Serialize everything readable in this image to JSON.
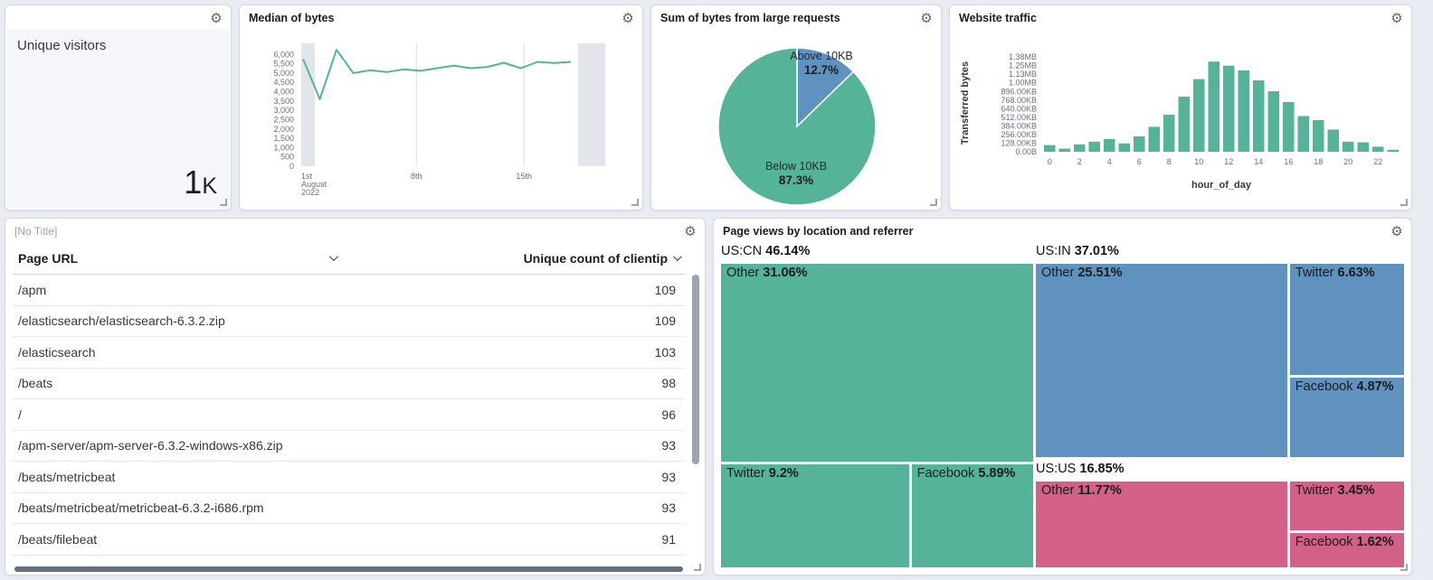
{
  "palette": {
    "green": "#54B399",
    "blue": "#6092C0",
    "pink": "#D36086",
    "band": "#E2E6EC"
  },
  "unique_visitors": {
    "label": "Unique visitors",
    "value": "1",
    "suffix": "K"
  },
  "median_of_bytes": {
    "title": "Median of bytes"
  },
  "large_requests": {
    "title": "Sum of bytes from large requests"
  },
  "website_traffic": {
    "title": "Website traffic"
  },
  "table_panel": {
    "title": "[No Title]",
    "col_page_url": "Page URL",
    "col_count": "Unique count of clientip"
  },
  "treemap_panel": {
    "title": "Page views by location and referrer"
  },
  "chart_data": [
    {
      "type": "line",
      "title": "Median of bytes",
      "color": "#54B399",
      "ylim": [
        0,
        6000
      ],
      "y_ticks": [
        "0",
        "500",
        "1,000",
        "1,500",
        "2,000",
        "2,500",
        "3,000",
        "3,500",
        "4,000",
        "4,500",
        "5,000",
        "5,500",
        "6,000"
      ],
      "x_ticks": [
        [
          "1st",
          "August",
          "2022"
        ],
        [
          "8th"
        ],
        [
          "15th"
        ]
      ],
      "values": [
        5750,
        3600,
        6250,
        5000,
        5150,
        5050,
        5200,
        5120,
        5260,
        5400,
        5260,
        5330,
        5550,
        5260,
        5600,
        5540,
        5600
      ]
    },
    {
      "type": "pie",
      "title": "Sum of bytes from large requests",
      "slices": [
        {
          "label": "Above 10KB",
          "value": 12.7,
          "pct_label": "12.7%",
          "color": "#6092C0"
        },
        {
          "label": "Below 10KB",
          "value": 87.3,
          "pct_label": "87.3%",
          "color": "#54B399"
        }
      ]
    },
    {
      "type": "bar",
      "title": "Website traffic",
      "xlabel": "hour_of_day",
      "ylabel": "Transferred bytes",
      "color": "#54B399",
      "categories": [
        0,
        1,
        2,
        3,
        4,
        5,
        6,
        7,
        8,
        9,
        10,
        11,
        12,
        13,
        14,
        15,
        16,
        17,
        18,
        19,
        20,
        21,
        22,
        23
      ],
      "values_kb": [
        100,
        45,
        110,
        150,
        190,
        125,
        230,
        370,
        550,
        820,
        1080,
        1340,
        1280,
        1210,
        1060,
        900,
        740,
        530,
        470,
        330,
        150,
        140,
        75,
        30
      ],
      "x_tick_labels": [
        "0",
        "2",
        "4",
        "6",
        "8",
        "10",
        "12",
        "14",
        "16",
        "18",
        "20",
        "22"
      ],
      "y_tick_labels": [
        "0.00B",
        "128.00KB",
        "256.00KB",
        "384.00KB",
        "512.00KB",
        "640.00KB",
        "768.00KB",
        "896.00KB",
        "1.00MB",
        "1.13MB",
        "1.25MB",
        "1.38MB"
      ],
      "y_tick_kb": [
        0,
        128,
        256,
        384,
        512,
        640,
        768,
        896,
        1024,
        1152,
        1280,
        1408
      ],
      "ylim_kb": [
        0,
        1450
      ]
    },
    {
      "type": "table",
      "columns": [
        "Page URL",
        "Unique count of clientip"
      ],
      "rows": [
        [
          "/apm",
          "109"
        ],
        [
          "/elasticsearch/elasticsearch-6.3.2.zip",
          "109"
        ],
        [
          "/elasticsearch",
          "103"
        ],
        [
          "/beats",
          "98"
        ],
        [
          "/",
          "96"
        ],
        [
          "/apm-server/apm-server-6.3.2-windows-x86.zip",
          "93"
        ],
        [
          "/beats/metricbeat",
          "93"
        ],
        [
          "/beats/metricbeat/metricbeat-6.3.2-i686.rpm",
          "93"
        ],
        [
          "/beats/filebeat",
          "91"
        ]
      ]
    },
    {
      "type": "treemap",
      "title": "Page views by location and referrer",
      "groups": [
        {
          "label": "US:CN",
          "pct_label": "46.14%",
          "pct": 46.14,
          "color": "#54B399",
          "children": [
            {
              "label": "Other",
              "pct_label": "31.06%",
              "pct": 31.06
            },
            {
              "label": "Twitter",
              "pct_label": "9.2%",
              "pct": 9.2
            },
            {
              "label": "Facebook",
              "pct_label": "5.89%",
              "pct": 5.89
            }
          ]
        },
        {
          "label": "US:IN",
          "pct_label": "37.01%",
          "pct": 37.01,
          "color": "#6092C0",
          "children": [
            {
              "label": "Other",
              "pct_label": "25.51%",
              "pct": 25.51
            },
            {
              "label": "Twitter",
              "pct_label": "6.63%",
              "pct": 6.63
            },
            {
              "label": "Facebook",
              "pct_label": "4.87%",
              "pct": 4.87
            }
          ]
        },
        {
          "label": "US:US",
          "pct_label": "16.85%",
          "pct": 16.85,
          "color": "#D36086",
          "children": [
            {
              "label": "Other",
              "pct_label": "11.77%",
              "pct": 11.77
            },
            {
              "label": "Twitter",
              "pct_label": "3.45%",
              "pct": 3.45
            },
            {
              "label": "Facebook",
              "pct_label": "1.62%",
              "pct": 1.62
            }
          ]
        }
      ]
    }
  ]
}
